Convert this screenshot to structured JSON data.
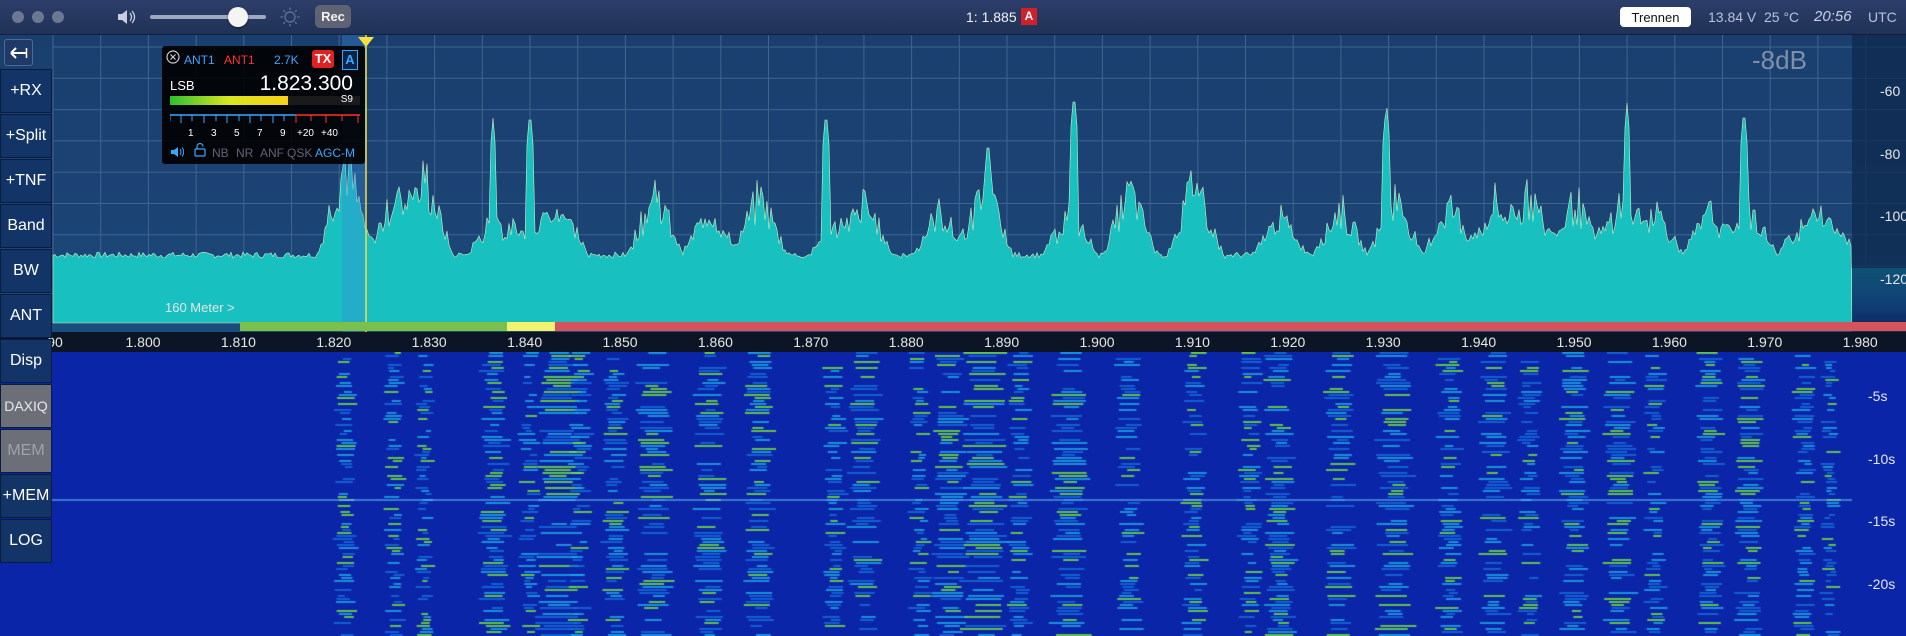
{
  "toolbar": {
    "volume_level": 0.76,
    "rec_label": "Rec",
    "slice_freq": "1: 1.885",
    "slice_letter": "A",
    "disconnect_label": "Trennen",
    "voltage": "13.84 V",
    "temperature": "25 °C",
    "time": "20:56",
    "timezone": "UTC"
  },
  "left_panel": {
    "back_icon": "back-arrow-icon",
    "buttons": [
      "+RX",
      "+Split",
      "+TNF",
      "Band",
      "BW",
      "ANT",
      "Disp",
      "DAXIQ",
      "MEM",
      "+MEM",
      "LOG"
    ]
  },
  "panadapter": {
    "db_level": "-8dB",
    "db_scale": [
      "-60",
      "-80",
      "-100",
      "-120"
    ],
    "band_label": "160 Meter >",
    "freq_labels": [
      "1.800",
      "1.810",
      "1.820",
      "1.830",
      "1.840",
      "1.850",
      "1.860",
      "1.870",
      "1.880",
      "1.890",
      "1.900",
      "1.910",
      "1.920",
      "1.930",
      "1.940",
      "1.950",
      "1.960",
      "1.970",
      "1.980"
    ],
    "edge_left_label": "90",
    "band_plan_colors": {
      "green": "#7cc04c",
      "yellow": "#f2f26c",
      "red": "#d6535c"
    }
  },
  "slice": {
    "rx_antenna": "ANT1",
    "tx_antenna": "ANT1",
    "filter_width": "2.7K",
    "tx_label": "TX",
    "letter": "A",
    "mode": "LSB",
    "frequency": "1.823.300",
    "s_reading": "S9",
    "smeter_level": 0.62,
    "scale": [
      "1",
      "3",
      "5",
      "7",
      "9",
      "+20",
      "+40"
    ],
    "toggles": [
      "NB",
      "NR",
      "ANF",
      "QSK"
    ],
    "agc": "AGC-M"
  },
  "waterfall": {
    "time_labels": [
      "-5s",
      "-10s",
      "-15s",
      "-20s"
    ]
  },
  "colors": {
    "background": "#1b4374",
    "waterfall_base": "#0b25a8",
    "accent_tx": "#e02121",
    "accent_slice": "#3aa7ff"
  }
}
